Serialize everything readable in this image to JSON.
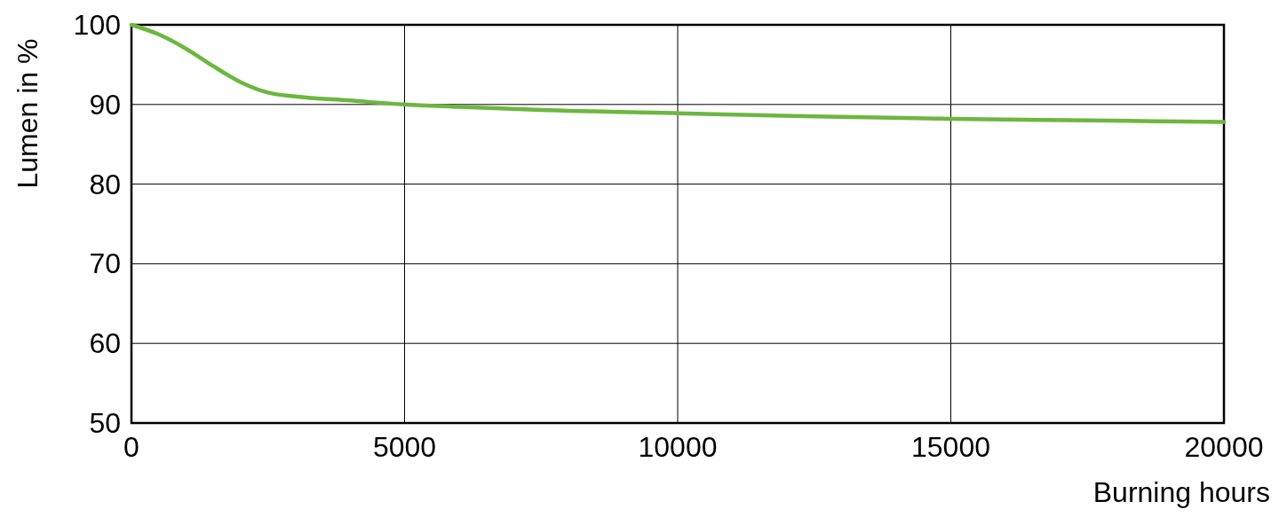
{
  "chart_data": {
    "type": "line",
    "xlabel": "Burning hours",
    "ylabel": "Lumen in %",
    "xlim": [
      0,
      20000
    ],
    "ylim": [
      50,
      100
    ],
    "xticks": [
      0,
      5000,
      10000,
      15000,
      20000
    ],
    "yticks": [
      50,
      60,
      70,
      80,
      90,
      100
    ],
    "grid": true,
    "marker": "none",
    "line_style": "solid",
    "series": [
      {
        "color": "#6cb73f",
        "x": [
          0,
          500,
          1000,
          1500,
          2000,
          2500,
          3000,
          4000,
          5000,
          6000,
          7500,
          10000,
          12500,
          15000,
          17500,
          20000
        ],
        "values": [
          100,
          98.8,
          97,
          94.8,
          92.8,
          91.5,
          91,
          90.5,
          90,
          89.7,
          89.3,
          88.9,
          88.5,
          88.2,
          88,
          87.8
        ]
      }
    ]
  }
}
